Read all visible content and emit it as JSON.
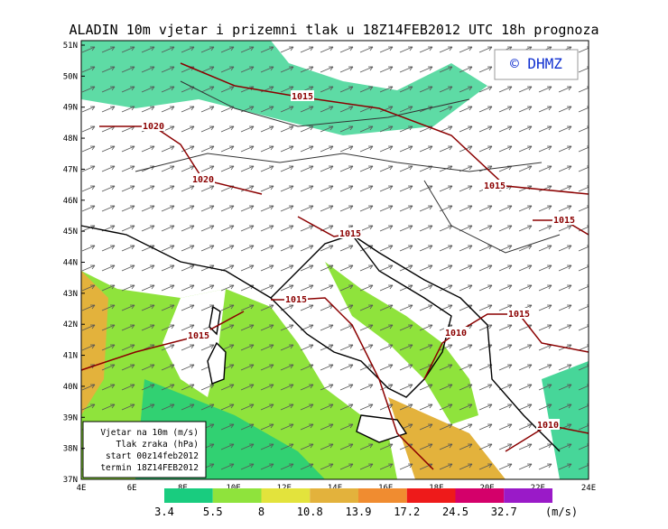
{
  "title": "ALADIN 10m vjetar i prizemni tlak u 18Z14FEB2012 UTC 18h prognoza",
  "logo": "© DHMZ",
  "lat_labels": [
    "51N",
    "50N",
    "49N",
    "48N",
    "47N",
    "46N",
    "45N",
    "44N",
    "43N",
    "42N",
    "41N",
    "40N",
    "39N",
    "38N",
    "37N"
  ],
  "lon_labels": [
    "4E",
    "6E",
    "8E",
    "10E",
    "12E",
    "14E",
    "16E",
    "18E",
    "20E",
    "22E",
    "24E"
  ],
  "isobars": [
    {
      "label": "1015"
    },
    {
      "label": "1020"
    },
    {
      "label": "1020"
    },
    {
      "label": "1015"
    },
    {
      "label": "1015"
    },
    {
      "label": "1015"
    },
    {
      "label": "1015"
    },
    {
      "label": "1015"
    },
    {
      "label": "1015"
    },
    {
      "label": "1010"
    },
    {
      "label": "1010"
    }
  ],
  "legend_box": [
    "Vjetar na 10m (m/s)",
    "Tlak zraka (hPa)",
    "start 00z14feb2012",
    "termin 18Z14FEB2012"
  ],
  "colorbar": {
    "colors": [
      "#19cc7f",
      "#8fe33c",
      "#e3e33c",
      "#e3b23c",
      "#f08c30",
      "#ee1a1a",
      "#d4006a",
      "#9a1ac8"
    ],
    "labels": [
      "3.4",
      "5.5",
      "8",
      "10.8",
      "13.9",
      "17.2",
      "24.5",
      "32.7"
    ],
    "unit": "(m/s)"
  }
}
